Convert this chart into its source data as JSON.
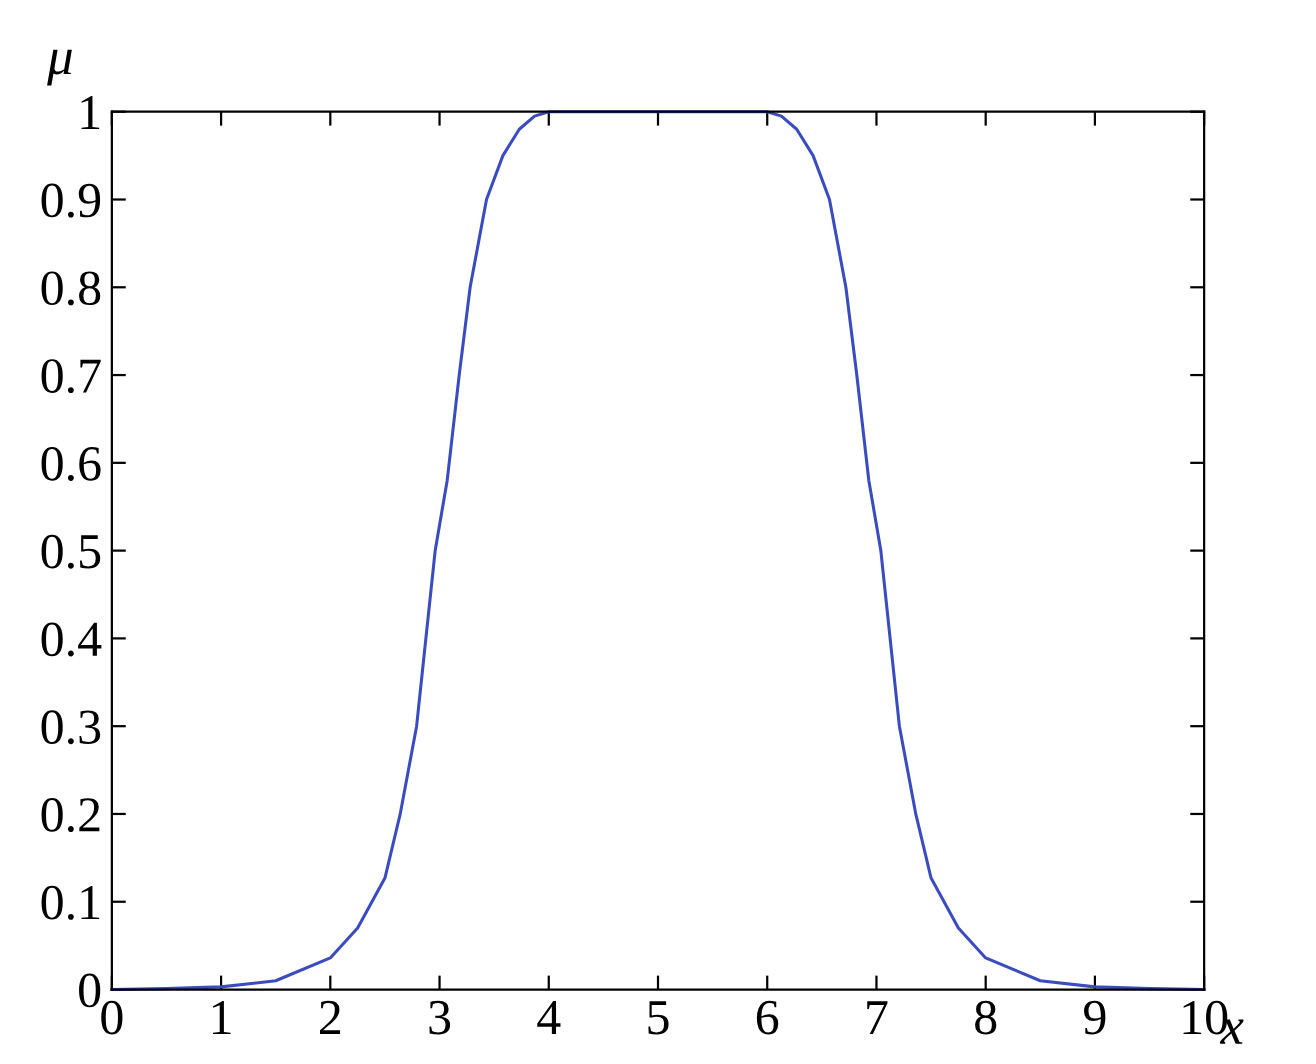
{
  "chart_data": {
    "type": "line",
    "xlabel": "x",
    "ylabel": "μ",
    "series": [
      {
        "color": "#3a4cc0",
        "x": [
          0,
          0.5,
          1,
          1.5,
          2,
          2.25,
          2.5,
          2.64,
          2.79,
          2.96,
          3.07,
          3.18,
          3.28,
          3.43,
          3.58,
          3.73,
          3.87,
          4,
          5,
          6,
          6.13,
          6.27,
          6.42,
          6.57,
          6.72,
          6.82,
          6.93,
          7.04,
          7.21,
          7.36,
          7.5,
          7.75,
          8,
          8.5,
          9,
          9.5,
          10
        ],
        "values": [
          0,
          0.001,
          0.003,
          0.01,
          0.036,
          0.07,
          0.127,
          0.2,
          0.3,
          0.5,
          0.58,
          0.7,
          0.8,
          0.9,
          0.95,
          0.98,
          0.995,
          1,
          1,
          1,
          0.995,
          0.98,
          0.95,
          0.9,
          0.8,
          0.7,
          0.58,
          0.5,
          0.3,
          0.2,
          0.127,
          0.07,
          0.036,
          0.01,
          0.003,
          0.001,
          0
        ]
      }
    ],
    "xlim": [
      0,
      10
    ],
    "ylim": [
      0,
      1
    ],
    "xticks": [
      0,
      1,
      2,
      3,
      4,
      5,
      6,
      7,
      8,
      9,
      10
    ],
    "yticks": [
      0,
      0.1,
      0.2,
      0.3,
      0.4,
      0.5,
      0.6,
      0.7,
      0.8,
      0.9,
      1
    ],
    "grid": false,
    "legend": false,
    "marker": "none",
    "line_style": "solid"
  }
}
